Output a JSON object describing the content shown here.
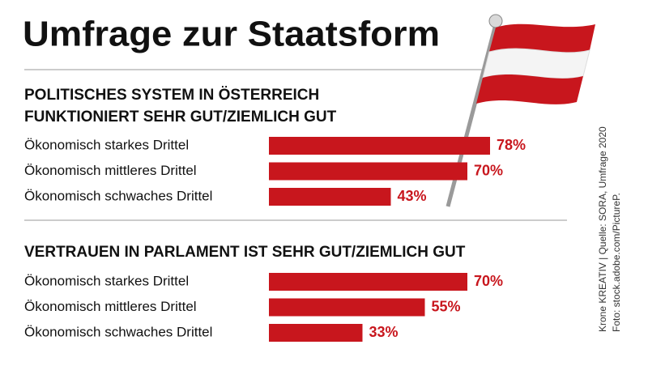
{
  "title": "Umfrage zur Staatsform",
  "source": [
    "Krone KREATIV | Quelle: SORA, Umfrage 2020",
    "Foto: stock.adobe.com/PictureP."
  ],
  "chart_data": [
    {
      "type": "bar",
      "title": [
        "POLITISCHES SYSTEM IN ÖSTERREICH",
        "FUNKTIONIERT SEHR GUT/ZIEMLICH GUT"
      ],
      "categories": [
        "Ökonomisch starkes Drittel",
        "Ökonomisch mittleres Drittel",
        "Ökonomisch schwaches Drittel"
      ],
      "values": [
        78,
        70,
        43
      ],
      "value_labels": [
        "78%",
        "70%",
        "43%"
      ],
      "color": "#c8161d"
    },
    {
      "type": "bar",
      "title": [
        "VERTRAUEN IN PARLAMENT IST SEHR GUT/ZIEMLICH GUT"
      ],
      "categories": [
        "Ökonomisch starkes Drittel",
        "Ökonomisch mittleres Drittel",
        "Ökonomisch schwaches Drittel"
      ],
      "values": [
        70,
        55,
        33
      ],
      "value_labels": [
        "70%",
        "55%",
        "33%"
      ],
      "color": "#c8161d"
    }
  ]
}
